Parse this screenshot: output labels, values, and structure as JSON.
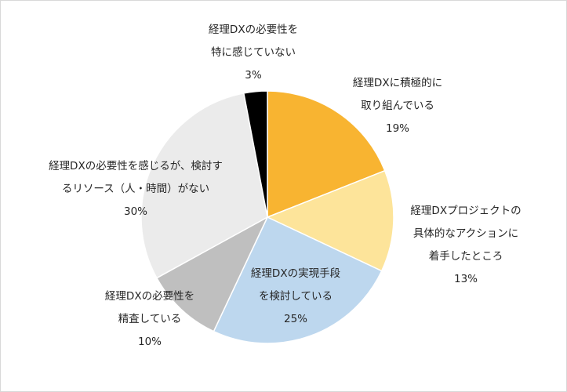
{
  "chart_data": {
    "type": "pie",
    "title": "",
    "colors": {
      "slice_stroke": "#ffffff",
      "label_text": "#262626",
      "border": "#d9d9d9"
    },
    "slices": [
      {
        "name": "経理DXに積極的に取り組んでいる",
        "label_lines": [
          "経理DXに積極的に",
          "取り組んでいる"
        ],
        "value": 19,
        "value_label": "19%",
        "color": "#f8b431"
      },
      {
        "name": "経理DXプロジェクトの具体的なアクションに着手したところ",
        "label_lines": [
          "経理DXプロジェクトの",
          "具体的なアクションに",
          "着手したところ"
        ],
        "value": 13,
        "value_label": "13%",
        "color": "#fde49a"
      },
      {
        "name": "経理DXの実現手段を検討している",
        "label_lines": [
          "経理DXの実現手段",
          "を検討している"
        ],
        "value": 25,
        "value_label": "25%",
        "color": "#bdd7ee"
      },
      {
        "name": "経理DXの必要性を精査している",
        "label_lines": [
          "経理DXの必要性を",
          "精査している"
        ],
        "value": 10,
        "value_label": "10%",
        "color": "#bfbfbf"
      },
      {
        "name": "経理DXの必要性を感じるが、検討するリソース（人・時間）がない",
        "label_lines": [
          "経理DXの必要性を感じるが、検討す",
          "るリソース（人・時間）がない"
        ],
        "value": 30,
        "value_label": "30%",
        "color": "#ebebeb"
      },
      {
        "name": "経理DXの必要性を特に感じていない",
        "label_lines": [
          "経理DXの必要性を",
          "特に感じていない"
        ],
        "value": 3,
        "value_label": "3%",
        "color": "#000000"
      }
    ]
  }
}
